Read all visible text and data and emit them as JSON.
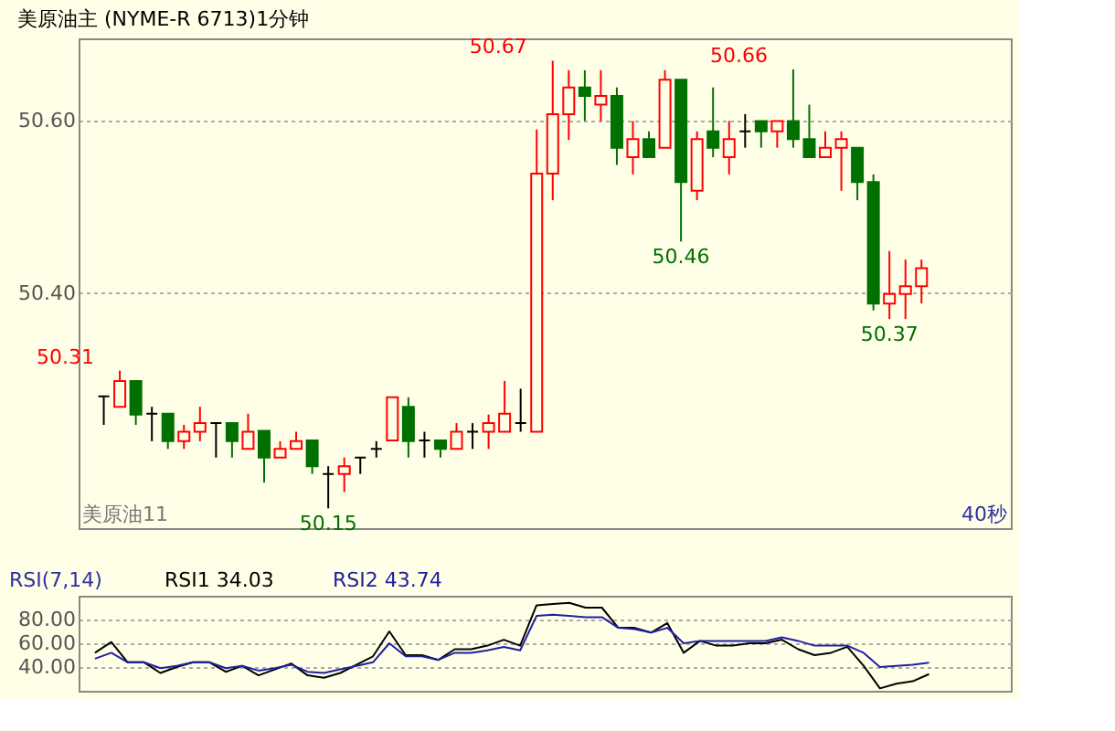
{
  "chart_data": [
    {
      "type": "candlestick",
      "title": "美原油主 (NYME-R 6713)1分钟",
      "categories": [
        null,
        null,
        null,
        null,
        null,
        null,
        null,
        null,
        null,
        null,
        null,
        null,
        null,
        null,
        null,
        null,
        null,
        null,
        null,
        null,
        null,
        null,
        null,
        null,
        null,
        null,
        null,
        null,
        null,
        null,
        null,
        null,
        null,
        null,
        null,
        null,
        null,
        null,
        null,
        null,
        null,
        null,
        null,
        null,
        null,
        null,
        null,
        null,
        null,
        null,
        null,
        null
      ],
      "ohlc": [
        [
          50.28,
          50.28,
          50.247,
          50.28
        ],
        [
          50.268,
          50.31,
          50.268,
          50.298
        ],
        [
          50.298,
          50.298,
          50.247,
          50.259
        ],
        [
          50.26,
          50.268,
          50.228,
          50.26
        ],
        [
          50.26,
          50.26,
          50.219,
          50.228
        ],
        [
          50.228,
          50.247,
          50.219,
          50.239
        ],
        [
          50.239,
          50.268,
          50.228,
          50.249
        ],
        [
          50.249,
          50.249,
          50.209,
          50.249
        ],
        [
          50.249,
          50.249,
          50.209,
          50.228
        ],
        [
          50.219,
          50.26,
          50.219,
          50.239
        ],
        [
          50.24,
          50.24,
          50.18,
          50.209
        ],
        [
          50.209,
          50.228,
          50.209,
          50.219
        ],
        [
          50.219,
          50.239,
          50.219,
          50.228
        ],
        [
          50.229,
          50.229,
          50.19,
          50.199
        ],
        [
          50.19,
          50.199,
          50.15,
          50.19
        ],
        [
          50.19,
          50.209,
          50.169,
          50.199
        ],
        [
          50.209,
          50.209,
          50.19,
          50.209
        ],
        [
          50.219,
          50.228,
          50.209,
          50.219
        ],
        [
          50.229,
          50.279,
          50.229,
          50.279
        ],
        [
          50.268,
          50.279,
          50.209,
          50.228
        ],
        [
          50.229,
          50.239,
          50.209,
          50.229
        ],
        [
          50.229,
          50.229,
          50.209,
          50.219
        ],
        [
          50.219,
          50.249,
          50.219,
          50.239
        ],
        [
          50.239,
          50.249,
          50.219,
          50.239
        ],
        [
          50.239,
          50.259,
          50.219,
          50.249
        ],
        [
          50.239,
          50.298,
          50.239,
          50.26
        ],
        [
          50.249,
          50.289,
          50.239,
          50.249
        ],
        [
          50.239,
          50.59,
          50.239,
          50.539
        ],
        [
          50.539,
          50.67,
          50.508,
          50.608
        ],
        [
          50.608,
          50.659,
          50.578,
          50.639
        ],
        [
          50.639,
          50.659,
          50.6,
          50.629
        ],
        [
          50.619,
          50.659,
          50.6,
          50.629
        ],
        [
          50.629,
          50.639,
          50.549,
          50.569
        ],
        [
          50.558,
          50.6,
          50.538,
          50.579
        ],
        [
          50.579,
          50.588,
          50.558,
          50.558
        ],
        [
          50.569,
          50.659,
          50.569,
          50.648
        ],
        [
          50.648,
          50.648,
          50.46,
          50.529
        ],
        [
          50.519,
          50.588,
          50.508,
          50.579
        ],
        [
          50.588,
          50.639,
          50.558,
          50.569
        ],
        [
          50.558,
          50.6,
          50.538,
          50.579
        ],
        [
          50.588,
          50.608,
          50.569,
          50.588
        ],
        [
          50.6,
          50.6,
          50.569,
          50.588
        ],
        [
          50.588,
          50.6,
          50.569,
          50.6
        ],
        [
          50.6,
          50.66,
          50.569,
          50.579
        ],
        [
          50.579,
          50.619,
          50.558,
          50.558
        ],
        [
          50.558,
          50.588,
          50.558,
          50.569
        ],
        [
          50.569,
          50.588,
          50.519,
          50.579
        ],
        [
          50.569,
          50.569,
          50.508,
          50.529
        ],
        [
          50.529,
          50.538,
          50.38,
          50.388
        ],
        [
          50.388,
          50.449,
          50.37,
          50.399
        ],
        [
          50.399,
          50.439,
          50.37,
          50.408
        ],
        [
          50.408,
          50.439,
          50.388,
          50.429
        ]
      ],
      "colors": [
        "#000000",
        "#ff0000",
        "#007000",
        "#000000",
        "#007000",
        "#ff0000",
        "#ff0000",
        "#000000",
        "#007000",
        "#ff0000",
        "#007000",
        "#ff0000",
        "#ff0000",
        "#007000",
        "#000000",
        "#ff0000",
        "#000000",
        "#000000",
        "#ff0000",
        "#007000",
        "#000000",
        "#007000",
        "#ff0000",
        "#000000",
        "#ff0000",
        "#ff0000",
        "#000000",
        "#ff0000",
        "#ff0000",
        "#ff0000",
        "#007000",
        "#ff0000",
        "#007000",
        "#ff0000",
        "#007000",
        "#ff0000",
        "#007000",
        "#ff0000",
        "#007000",
        "#ff0000",
        "#000000",
        "#007000",
        "#ff0000",
        "#007000",
        "#007000",
        "#ff0000",
        "#ff0000",
        "#007000",
        "#007000",
        "#ff0000",
        "#ff0000",
        "#ff0000"
      ],
      "ylim": [
        50.127,
        50.696
      ],
      "yticks": [
        {
          "value": 50.6,
          "label": "50.60"
        },
        {
          "value": 50.4,
          "label": "50.40"
        }
      ],
      "grid": "y",
      "tick_labels": "y",
      "annotations": [
        "50.31",
        "50.67",
        "50.66",
        "50.15",
        "50.46",
        "50.37",
        "美原油11",
        "40秒"
      ]
    },
    {
      "type": "line",
      "subtitle": "RSI(7,14)",
      "categories": [
        null,
        null,
        null,
        null,
        null,
        null,
        null,
        null,
        null,
        null,
        null,
        null,
        null,
        null,
        null,
        null,
        null,
        null,
        null,
        null,
        null,
        null,
        null,
        null,
        null,
        null,
        null,
        null,
        null,
        null,
        null,
        null,
        null,
        null,
        null,
        null,
        null,
        null,
        null,
        null,
        null,
        null,
        null,
        null,
        null,
        null,
        null,
        null,
        null,
        null,
        null,
        null
      ],
      "series": [
        {
          "name": "RSI1 34.03",
          "color": "#000000",
          "values": [
            52,
            61,
            44,
            44,
            35,
            40,
            44,
            44,
            36,
            41,
            33,
            38,
            43,
            33,
            31,
            35,
            42,
            49,
            70,
            50,
            50,
            46,
            55,
            55,
            58,
            63,
            58,
            92,
            93,
            94,
            90,
            90,
            73,
            73,
            69,
            77,
            52,
            62,
            58,
            58,
            60,
            60,
            63,
            55,
            50,
            52,
            57,
            41,
            22,
            26,
            28,
            34.03
          ]
        },
        {
          "name": "RSI2 43.74",
          "color": "#2020a0",
          "values": [
            47,
            52,
            44,
            44,
            39,
            41,
            44,
            44,
            39,
            41,
            37,
            39,
            42,
            36,
            35,
            38,
            41,
            44,
            60,
            49,
            49,
            46,
            52,
            52,
            54,
            57,
            54,
            83,
            84,
            83,
            82,
            82,
            73,
            72,
            69,
            73,
            60,
            62,
            62,
            62,
            62,
            62,
            65,
            62,
            58,
            58,
            58,
            52,
            40,
            41,
            42,
            43.74
          ]
        }
      ],
      "ylim": [
        20,
        100
      ],
      "yticks": [
        {
          "value": 80,
          "label": "80.00"
        },
        {
          "value": 60,
          "label": "60.00"
        },
        {
          "value": 40,
          "label": "40.00"
        }
      ],
      "grid": "y",
      "tick_labels": "y"
    }
  ]
}
